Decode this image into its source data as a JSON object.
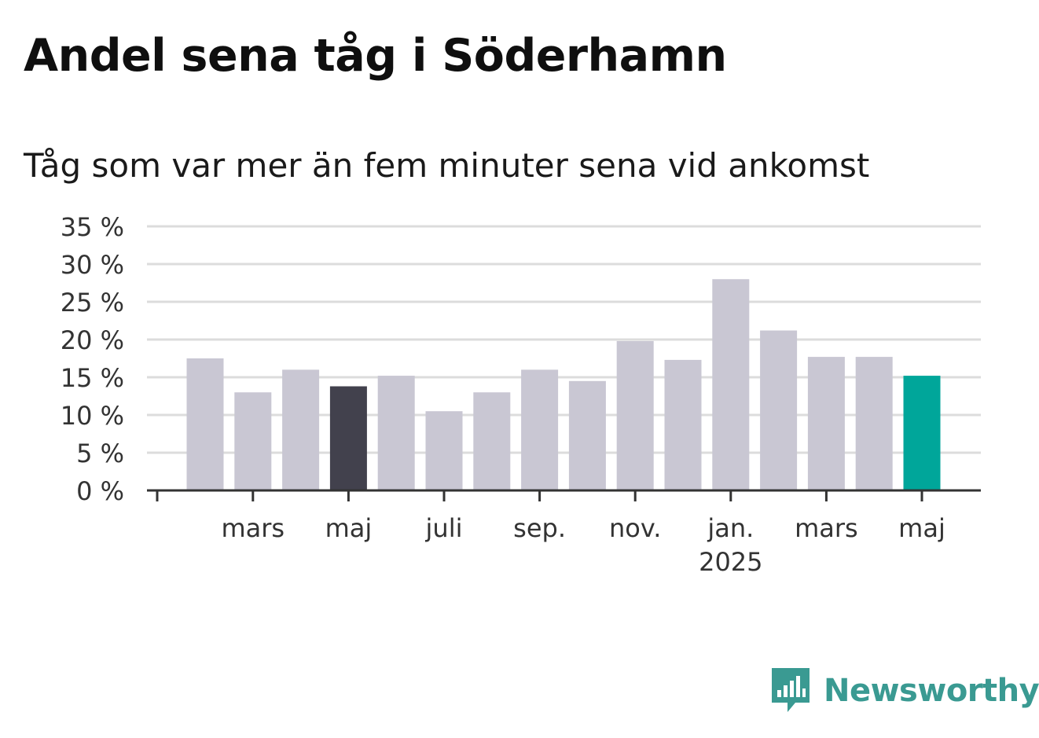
{
  "title": "Andel sena tåg i Söderhamn",
  "subtitle": "Tåg som var mer än fem minuter sena vid ankomst",
  "brand": {
    "name": "Newsworthy",
    "icon": "newsworthy-logo-icon",
    "color": "#3a9a92"
  },
  "chart_data": {
    "type": "bar",
    "title": "Andel sena tåg i Söderhamn",
    "subtitle": "Tåg som var mer än fem minuter sena vid ankomst",
    "xlabel": "",
    "ylabel": "",
    "ylim": [
      0,
      35
    ],
    "yticks": [
      0,
      5,
      10,
      15,
      20,
      25,
      30,
      35
    ],
    "ytick_labels": [
      "0 %",
      "5 %",
      "10 %",
      "15 %",
      "20 %",
      "25 %",
      "30 %",
      "35 %"
    ],
    "grid": true,
    "legend": "none",
    "categories": [
      "feb. 2024",
      "mars 2024",
      "apr. 2024",
      "maj 2024",
      "juni 2024",
      "juli 2024",
      "aug. 2024",
      "sep. 2024",
      "okt. 2024",
      "nov. 2024",
      "dec. 2024",
      "jan. 2025",
      "feb. 2025",
      "mars 2025",
      "apr. 2025",
      "maj 2025"
    ],
    "values": [
      17.5,
      13.0,
      16.0,
      13.8,
      15.2,
      10.5,
      13.0,
      16.0,
      14.5,
      19.8,
      17.3,
      28.0,
      21.2,
      17.7,
      17.7,
      15.2
    ],
    "highlight": [
      {
        "index": 3,
        "color": "#42414d"
      },
      {
        "index": 15,
        "color": "#00a69a"
      }
    ],
    "bar_color": "#c9c7d3",
    "xtick_labels": [
      {
        "index": 1,
        "label": "mars",
        "sub": ""
      },
      {
        "index": 3,
        "label": "maj",
        "sub": ""
      },
      {
        "index": 5,
        "label": "juli",
        "sub": ""
      },
      {
        "index": 7,
        "label": "sep.",
        "sub": ""
      },
      {
        "index": 9,
        "label": "nov.",
        "sub": ""
      },
      {
        "index": 11,
        "label": "jan.",
        "sub": "2025"
      },
      {
        "index": 13,
        "label": "mars",
        "sub": ""
      },
      {
        "index": 15,
        "label": "maj",
        "sub": ""
      }
    ]
  }
}
